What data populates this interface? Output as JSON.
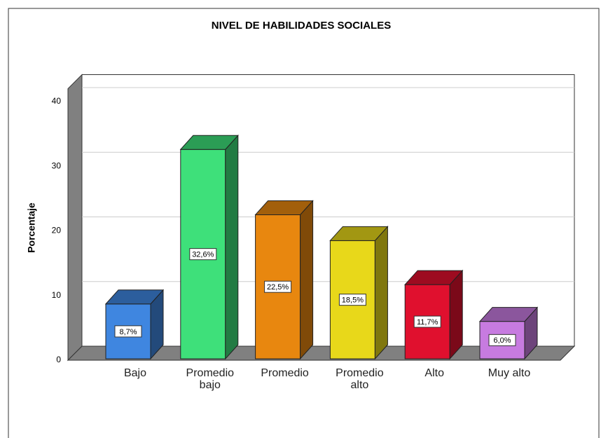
{
  "chart_data": {
    "type": "bar3d",
    "title": "NIVEL DE HABILIDADES SOCIALES",
    "y_label": "Porcentaje",
    "categories": [
      "Bajo",
      "Promedio bajo",
      "Promedio",
      "Promedio alto",
      "Alto",
      "Muy alto"
    ],
    "values": [
      8.7,
      32.6,
      22.5,
      18.5,
      11.7,
      6.0
    ],
    "value_labels": [
      "8,7%",
      "32,6%",
      "22,5%",
      "18,5%",
      "11,7%",
      "6,0%"
    ],
    "colors": [
      "#3f86e0",
      "#3ee07a",
      "#e8870f",
      "#e8d81a",
      "#e0102e",
      "#c77be0"
    ],
    "ylim": [
      0,
      42
    ],
    "yticks": [
      0,
      10,
      20,
      30,
      40
    ],
    "grid": true
  }
}
